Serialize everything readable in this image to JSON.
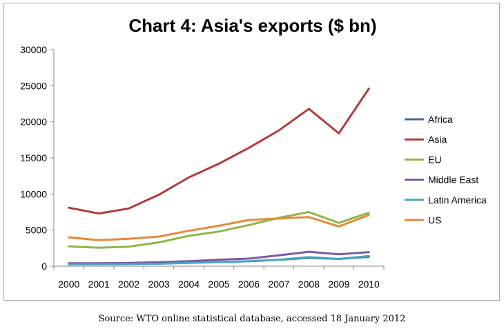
{
  "chart_data": {
    "type": "line",
    "title": "Chart 4: Asia's exports ($ bn)",
    "x": [
      "2000",
      "2001",
      "2002",
      "2003",
      "2004",
      "2005",
      "2006",
      "2007",
      "2008",
      "2009",
      "2010"
    ],
    "ylim": [
      0,
      30000
    ],
    "yticks": [
      "0",
      "5000",
      "10000",
      "15000",
      "20000",
      "25000",
      "30000"
    ],
    "grid": false,
    "legend_position": "right",
    "series": [
      {
        "name": "Africa",
        "color": "#3a6ea5",
        "values": [
          300,
          290,
          310,
          380,
          480,
          570,
          680,
          880,
          1150,
          1000,
          1300
        ]
      },
      {
        "name": "Asia",
        "color": "#b23b3b",
        "values": [
          8100,
          7300,
          8000,
          9900,
          12300,
          14200,
          16400,
          18800,
          21800,
          18400,
          24600
        ]
      },
      {
        "name": "EU",
        "color": "#8fb547",
        "values": [
          2750,
          2550,
          2700,
          3300,
          4200,
          4800,
          5700,
          6700,
          7500,
          6000,
          7400
        ]
      },
      {
        "name": "Middle East",
        "color": "#7a5aa6",
        "values": [
          400,
          400,
          450,
          550,
          700,
          900,
          1050,
          1500,
          2000,
          1650,
          1950
        ]
      },
      {
        "name": "Latin America",
        "color": "#4aa6c2",
        "values": [
          250,
          270,
          290,
          330,
          460,
          560,
          700,
          900,
          1250,
          1000,
          1400
        ]
      },
      {
        "name": "US",
        "color": "#e8893a",
        "values": [
          4000,
          3600,
          3800,
          4100,
          4900,
          5600,
          6400,
          6600,
          6800,
          5500,
          7100
        ]
      }
    ]
  },
  "footer": {
    "source": "Source: WTO online statistical database, accessed 18 January 2012"
  }
}
